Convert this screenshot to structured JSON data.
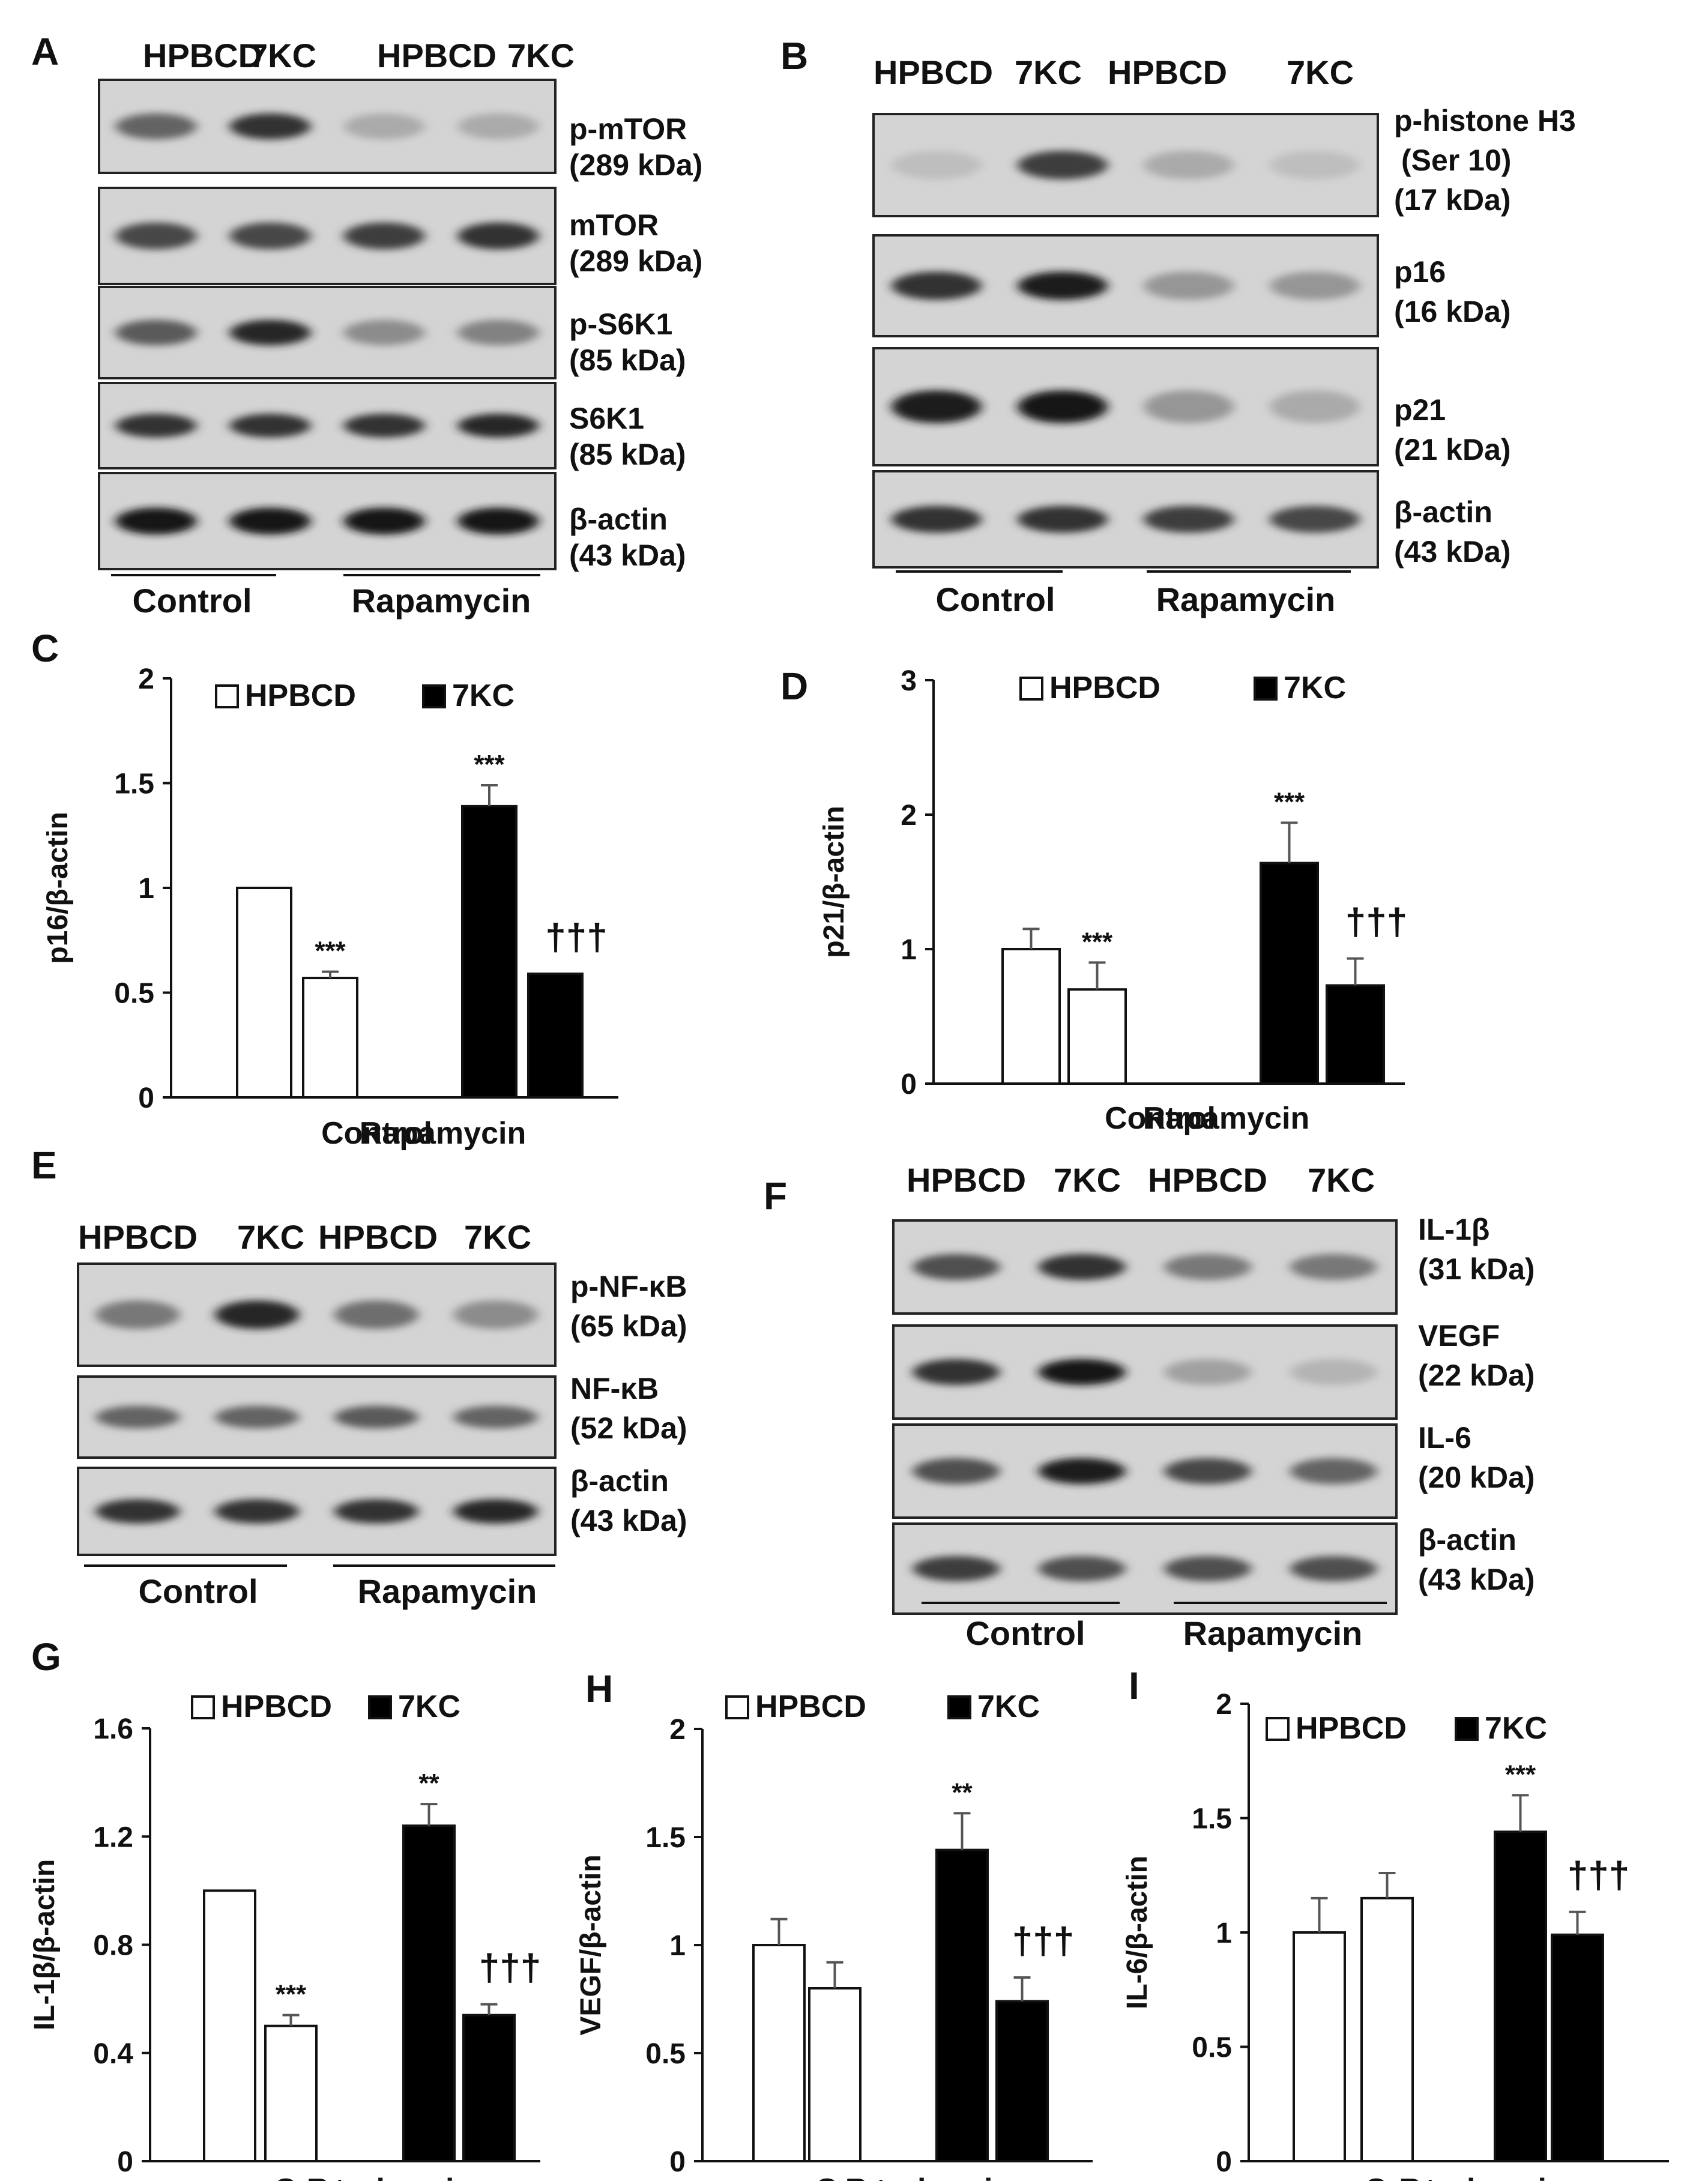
{
  "panels": {
    "A": {
      "letter": "A",
      "lanes": [
        "HPBCD",
        "7KC",
        "HPBCD",
        "7KC"
      ],
      "groups": [
        "Control",
        "Rapamycin"
      ],
      "blots": [
        {
          "protein": "p-mTOR",
          "size": "(289 kDa)",
          "bands": [
            0.55,
            0.8,
            0.2,
            0.2
          ]
        },
        {
          "protein": "mTOR",
          "size": "(289 kDa)",
          "bands": [
            0.7,
            0.7,
            0.75,
            0.8
          ]
        },
        {
          "protein": "p-S6K1",
          "size": "(85 kDa)",
          "bands": [
            0.6,
            0.85,
            0.35,
            0.4
          ]
        },
        {
          "protein": "S6K1",
          "size": "(85 kDa)",
          "bands": [
            0.8,
            0.8,
            0.8,
            0.85
          ]
        },
        {
          "protein": "β-actin",
          "size": "(43 kDa)",
          "bands": [
            0.95,
            0.95,
            0.95,
            0.95
          ]
        }
      ]
    },
    "B": {
      "letter": "B",
      "lanes": [
        "HPBCD",
        "7KC",
        "HPBCD",
        "7KC"
      ],
      "groups": [
        "Control",
        "Rapamycin"
      ],
      "blots": [
        {
          "protein": "p-histone H3",
          "protein2": "(Ser 10)",
          "size": "(17 kDa)",
          "bands": [
            0.1,
            0.75,
            0.2,
            0.1
          ]
        },
        {
          "protein": "p16",
          "size": "(16 kDa)",
          "bands": [
            0.8,
            0.9,
            0.3,
            0.3
          ]
        },
        {
          "protein": "p21",
          "size": "(21 kDa)",
          "bands": [
            0.9,
            0.95,
            0.3,
            0.2
          ]
        },
        {
          "protein": "β-actin",
          "size": "(43 kDa)",
          "bands": [
            0.8,
            0.8,
            0.75,
            0.7
          ]
        }
      ]
    },
    "E": {
      "letter": "E",
      "lanes": [
        "HPBCD",
        "7KC",
        "HPBCD",
        "7KC"
      ],
      "groups": [
        "Control",
        "Rapamycin"
      ],
      "blots": [
        {
          "protein": "p-NF-κB",
          "size": "(65 kDa)",
          "bands": [
            0.45,
            0.85,
            0.5,
            0.35
          ]
        },
        {
          "protein": "NF-κB",
          "size": "(52 kDa)",
          "bands": [
            0.55,
            0.55,
            0.6,
            0.55
          ]
        },
        {
          "protein": "β-actin",
          "size": "(43 kDa)",
          "bands": [
            0.8,
            0.8,
            0.8,
            0.85
          ]
        }
      ]
    },
    "F": {
      "letter": "F",
      "lanes": [
        "HPBCD",
        "7KC",
        "HPBCD",
        "7KC"
      ],
      "groups": [
        "Control",
        "Rapamycin"
      ],
      "blots": [
        {
          "protein": "IL-1β",
          "size": "(31 kDa)",
          "bands": [
            0.65,
            0.8,
            0.45,
            0.45
          ]
        },
        {
          "protein": "VEGF",
          "size": "(22 kDa)",
          "bands": [
            0.8,
            0.95,
            0.25,
            0.15
          ]
        },
        {
          "protein": "IL-6",
          "size": "(20 kDa)",
          "bands": [
            0.65,
            0.9,
            0.7,
            0.55
          ]
        },
        {
          "protein": "β-actin",
          "size": "(43 kDa)",
          "bands": [
            0.75,
            0.65,
            0.65,
            0.65
          ]
        }
      ]
    }
  },
  "chart_data": [
    {
      "panel": "C",
      "type": "bar",
      "ylabel": "p16/β-actin",
      "ylim": [
        0,
        2
      ],
      "yticks": [
        "0",
        "0.5",
        "1",
        "1.5",
        "2"
      ],
      "yvals": [
        0,
        0.5,
        1,
        1.5,
        2
      ],
      "categories": [
        "Control",
        "Rapamycin"
      ],
      "series": [
        {
          "name": "HPBCD",
          "fill": "#ffffff",
          "values": [
            1.0,
            0.57
          ],
          "errors": [
            0,
            0.03
          ]
        },
        {
          "name": "7KC",
          "fill": "#000000",
          "values": [
            1.39,
            0.59
          ],
          "errors": [
            0.1,
            0
          ]
        }
      ],
      "annotations": [
        {
          "text": "***",
          "category": 0,
          "series": 1,
          "style": "star"
        },
        {
          "text": "***",
          "category": 1,
          "series": 0,
          "style": "star"
        },
        {
          "text": "†††",
          "category": 1,
          "series": 1,
          "style": "dagger"
        }
      ],
      "legend": "top"
    },
    {
      "panel": "D",
      "type": "bar",
      "ylabel": "p21/β-actin",
      "ylim": [
        0,
        3
      ],
      "yticks": [
        "0",
        "1",
        "2",
        "3"
      ],
      "yvals": [
        0,
        1,
        2,
        3
      ],
      "categories": [
        "Control",
        "Rapamycin"
      ],
      "series": [
        {
          "name": "HPBCD",
          "fill": "#ffffff",
          "values": [
            1.0,
            0.7
          ],
          "errors": [
            0.15,
            0.2
          ]
        },
        {
          "name": "7KC",
          "fill": "#000000",
          "values": [
            1.64,
            0.73
          ],
          "errors": [
            0.3,
            0.2
          ]
        }
      ],
      "annotations": [
        {
          "text": "***",
          "category": 0,
          "series": 1,
          "style": "star"
        },
        {
          "text": "***",
          "category": 1,
          "series": 0,
          "style": "star"
        },
        {
          "text": "†††",
          "category": 1,
          "series": 1,
          "style": "dagger"
        }
      ],
      "legend": "top"
    },
    {
      "panel": "G",
      "type": "bar",
      "ylabel": "IL-1β/β-actin",
      "ylim": [
        0,
        1.6
      ],
      "yticks": [
        "0",
        "0.4",
        "0.8",
        "1.2",
        "1.6"
      ],
      "yvals": [
        0,
        0.4,
        0.8,
        1.2,
        1.6
      ],
      "categories": [
        "Control",
        "Rapamycin"
      ],
      "series": [
        {
          "name": "HPBCD",
          "fill": "#ffffff",
          "values": [
            1.0,
            0.5
          ],
          "errors": [
            0,
            0.04
          ]
        },
        {
          "name": "7KC",
          "fill": "#000000",
          "values": [
            1.24,
            0.54
          ],
          "errors": [
            0.08,
            0.04
          ]
        }
      ],
      "annotations": [
        {
          "text": "**",
          "category": 0,
          "series": 1,
          "style": "star"
        },
        {
          "text": "***",
          "category": 1,
          "series": 0,
          "style": "star"
        },
        {
          "text": "†††",
          "category": 1,
          "series": 1,
          "style": "dagger"
        }
      ],
      "legend": "top"
    },
    {
      "panel": "H",
      "type": "bar",
      "ylabel": "VEGF/β-actin",
      "ylim": [
        0,
        2
      ],
      "yticks": [
        "0",
        "0.5",
        "1",
        "1.5",
        "2"
      ],
      "yvals": [
        0,
        0.5,
        1,
        1.5,
        2
      ],
      "categories": [
        "Control",
        "Rapamycin"
      ],
      "series": [
        {
          "name": "HPBCD",
          "fill": "#ffffff",
          "values": [
            1.0,
            0.8
          ],
          "errors": [
            0.12,
            0.12
          ]
        },
        {
          "name": "7KC",
          "fill": "#000000",
          "values": [
            1.44,
            0.74
          ],
          "errors": [
            0.17,
            0.11
          ]
        }
      ],
      "annotations": [
        {
          "text": "**",
          "category": 0,
          "series": 1,
          "style": "star"
        },
        {
          "text": "†††",
          "category": 1,
          "series": 1,
          "style": "dagger"
        }
      ],
      "legend": "top"
    },
    {
      "panel": "I",
      "type": "bar",
      "ylabel": "IL-6/β-actin",
      "ylim": [
        0,
        2
      ],
      "yticks": [
        "0",
        "0.5",
        "1",
        "1.5",
        "2"
      ],
      "yvals": [
        0,
        0.5,
        1,
        1.5,
        2
      ],
      "categories": [
        "Control",
        "Rapamycin"
      ],
      "series": [
        {
          "name": "HPBCD",
          "fill": "#ffffff",
          "values": [
            1.0,
            1.15
          ],
          "errors": [
            0.15,
            0.11
          ]
        },
        {
          "name": "7KC",
          "fill": "#000000",
          "values": [
            1.44,
            0.99
          ],
          "errors": [
            0.16,
            0.1
          ]
        }
      ],
      "annotations": [
        {
          "text": "***",
          "category": 0,
          "series": 1,
          "style": "star"
        },
        {
          "text": "†††",
          "category": 1,
          "series": 1,
          "style": "dagger"
        }
      ],
      "legend": "top"
    }
  ]
}
